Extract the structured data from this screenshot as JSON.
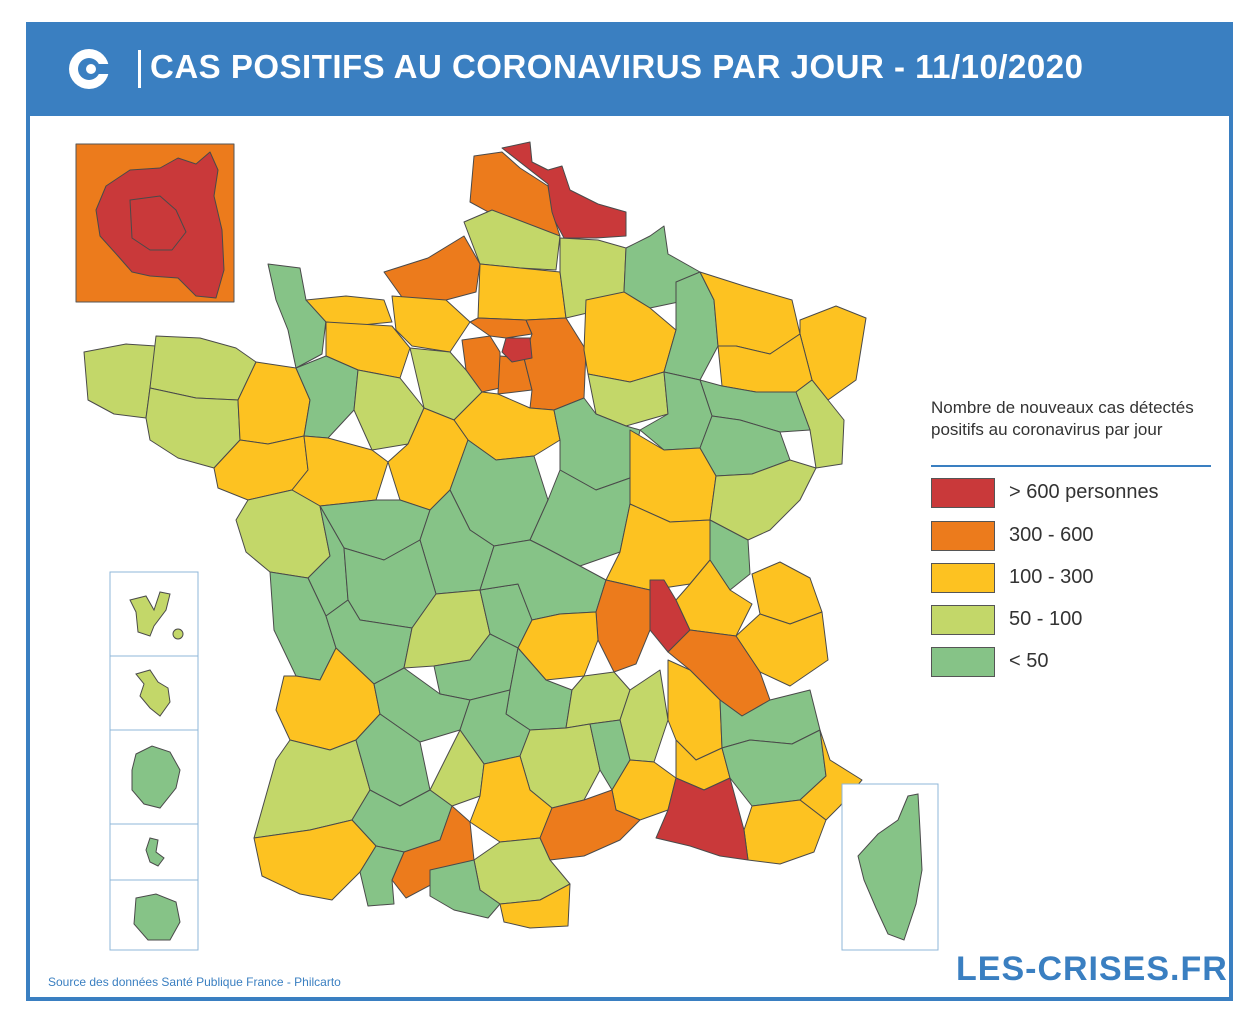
{
  "header": {
    "title": "CAS POSITIFS AU CORONAVIRUS PAR JOUR - 11/10/2020",
    "logo_icon": "les-crises-logo-icon"
  },
  "legend": {
    "title": "Nombre de nouveaux cas détectés positifs au coronavirus par jour",
    "items": [
      {
        "label": "> 600 personnes",
        "color": "#c9393a"
      },
      {
        "label": "300 - 600",
        "color": "#ec7b1c"
      },
      {
        "label": "100 - 300",
        "color": "#fdc221"
      },
      {
        "label": "50 - 100",
        "color": "#c3d769"
      },
      {
        "label": "< 50",
        "color": "#86c387"
      }
    ]
  },
  "footer": {
    "source": "Source des données Santé Publique France - Philcarto",
    "brand": "LES-CRISES.FR"
  },
  "colors": {
    "accent": "#3a7fc1",
    "border": "#555555"
  }
}
